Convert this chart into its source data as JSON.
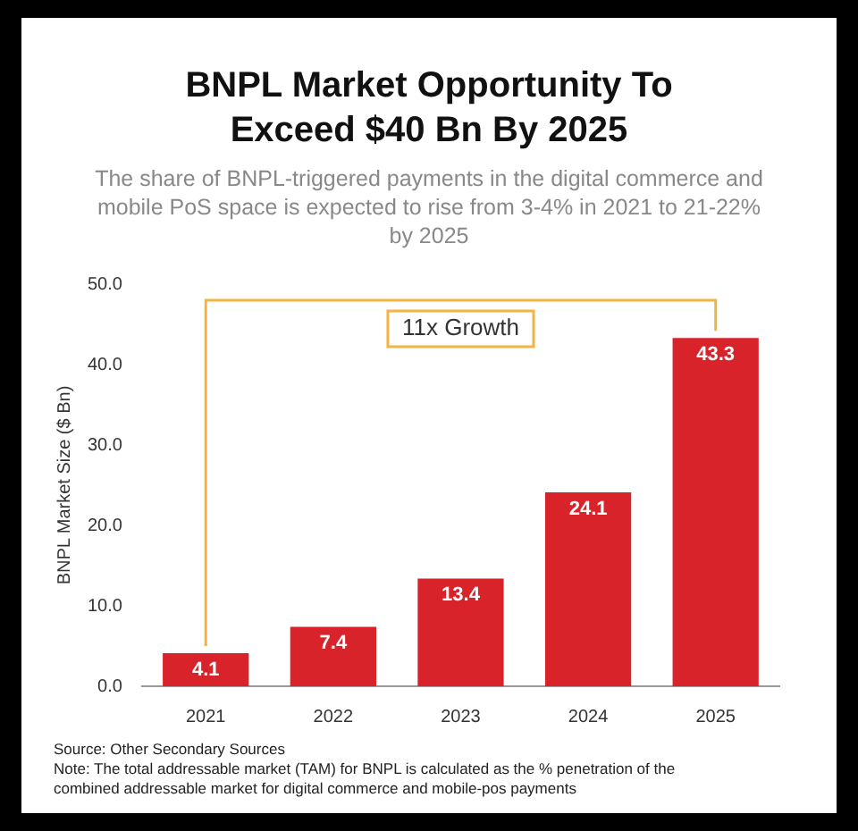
{
  "chart_data": {
    "type": "bar",
    "title": "BNPL Market Opportunity To Exceed $40 Bn By 2025",
    "subtitle": "The share of BNPL-triggered payments in the digital commerce and mobile PoS space is expected to rise from 3-4% in 2021 to 21-22% by 2025",
    "ylabel": "BNPL Market Size ($ Bn)",
    "categories": [
      "2021",
      "2022",
      "2023",
      "2024",
      "2025"
    ],
    "values": [
      4.1,
      7.4,
      13.4,
      24.1,
      43.3
    ],
    "color": "#d9232a",
    "ylim": [
      0,
      50
    ],
    "yticks": [
      {
        "value": 0,
        "label": "0.0"
      },
      {
        "value": 10,
        "label": "10.0"
      },
      {
        "value": 20,
        "label": "20.0"
      },
      {
        "value": 30,
        "label": "30.0"
      },
      {
        "value": 40,
        "label": "40.0"
      },
      {
        "value": 50,
        "label": "50.0"
      }
    ],
    "data_labels": true,
    "annotations": [
      "11x Growth",
      "Source: Other Secondary Sources",
      "Note: The total addressable market (TAM) for BNPL is calculated as the % penetration of the combined addressable market for digital commerce and mobile-pos payments"
    ]
  }
}
